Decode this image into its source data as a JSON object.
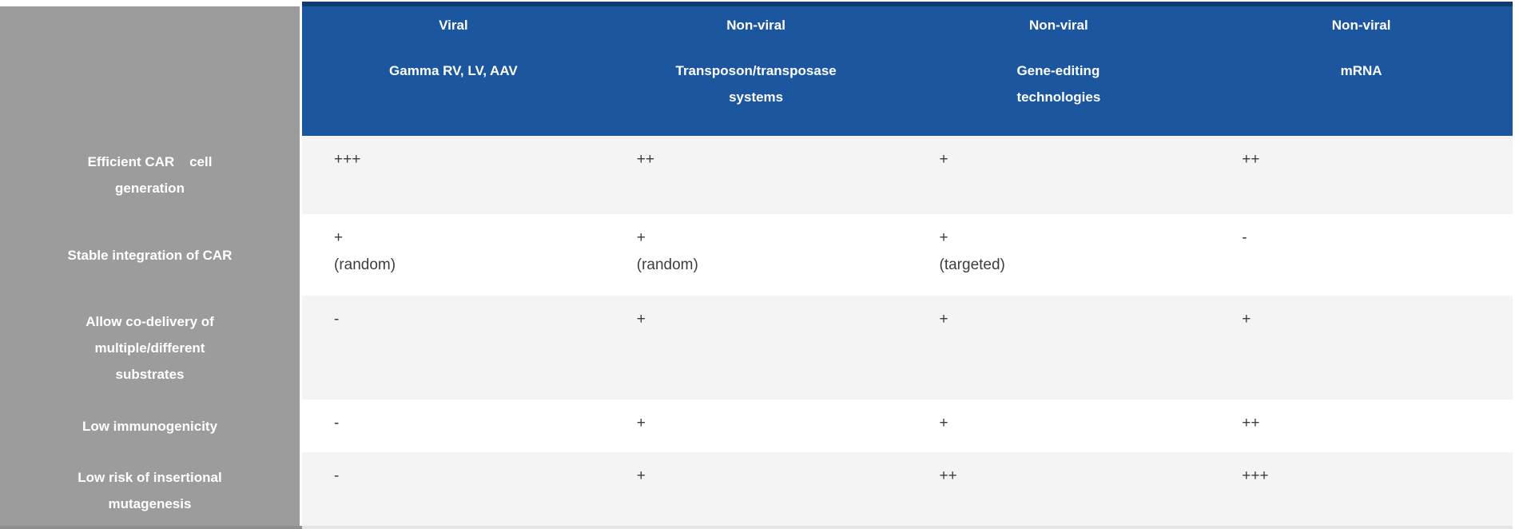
{
  "table": {
    "header": {
      "columns": [
        {
          "category": "Viral",
          "subtype": "Gamma RV, LV, AAV"
        },
        {
          "category": "Non-viral",
          "subtype": "Transposon/transposase\nsystems"
        },
        {
          "category": "Non-viral",
          "subtype": "Gene-editing\ntechnologies"
        },
        {
          "category": "Non-viral",
          "subtype": "mRNA"
        }
      ]
    },
    "rows": [
      {
        "label": "Efficient CAR    cell\ngeneration",
        "cells": [
          "+++",
          "++",
          "+",
          "++"
        ]
      },
      {
        "label": "Stable integration of CAR",
        "cells": [
          "+\n(random)",
          "+\n(random)",
          "+\n(targeted)",
          "-"
        ]
      },
      {
        "label": "Allow co-delivery of\nmultiple/different\nsubstrates",
        "cells": [
          "-",
          "+",
          "+",
          "+"
        ]
      },
      {
        "label": "Low immunogenicity",
        "cells": [
          "-",
          "+",
          "+",
          "++"
        ]
      },
      {
        "label": "Low risk of insertional\nmutagenesis",
        "cells": [
          "-",
          "+",
          "++",
          "+++"
        ]
      }
    ],
    "colors": {
      "header_bg": "#1b569e",
      "header_top_border": "#0f3a6d",
      "label_column_bg": "#9c9c9c",
      "row_light_bg": "#f4f4f4",
      "row_white_bg": "#ffffff",
      "header_text": "#ffffff",
      "label_text": "#ffffff",
      "data_text": "#3d3d3d"
    }
  }
}
